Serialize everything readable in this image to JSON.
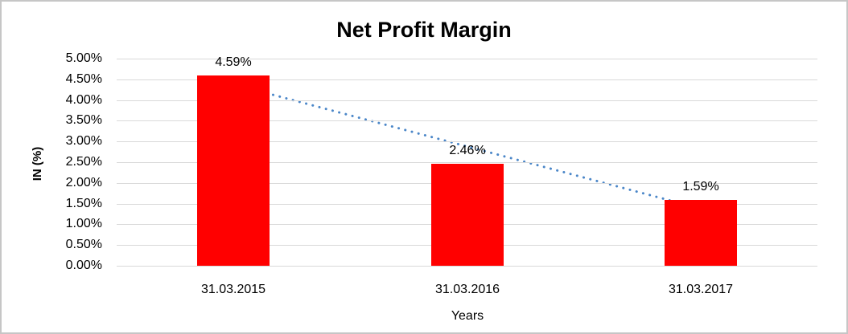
{
  "chart_data": {
    "type": "bar",
    "title": "Net Profit Margin",
    "xlabel": "Years",
    "ylabel": "IN (%)",
    "categories": [
      "31.03.2015",
      "31.03.2016",
      "31.03.2017"
    ],
    "values": [
      4.59,
      2.46,
      1.59
    ],
    "data_labels": [
      "4.59%",
      "2.46%",
      "1.59%"
    ],
    "ylim": [
      0,
      5
    ],
    "ytick_step": 0.5,
    "ytick_labels": [
      "5.00%",
      "4.50%",
      "4.00%",
      "3.50%",
      "3.00%",
      "2.50%",
      "2.00%",
      "1.50%",
      "1.00%",
      "0.50%",
      "0.00%"
    ],
    "grid": true,
    "legend": "none",
    "colors": {
      "bar": "#ff0000",
      "trendline": "#4a86c8",
      "gridline": "#d9d9d9",
      "text": "#000000",
      "frame_border": "#c6c6c6"
    },
    "trendline": {
      "style": "dotted",
      "start_value": 4.38,
      "end_value": 1.38
    }
  }
}
